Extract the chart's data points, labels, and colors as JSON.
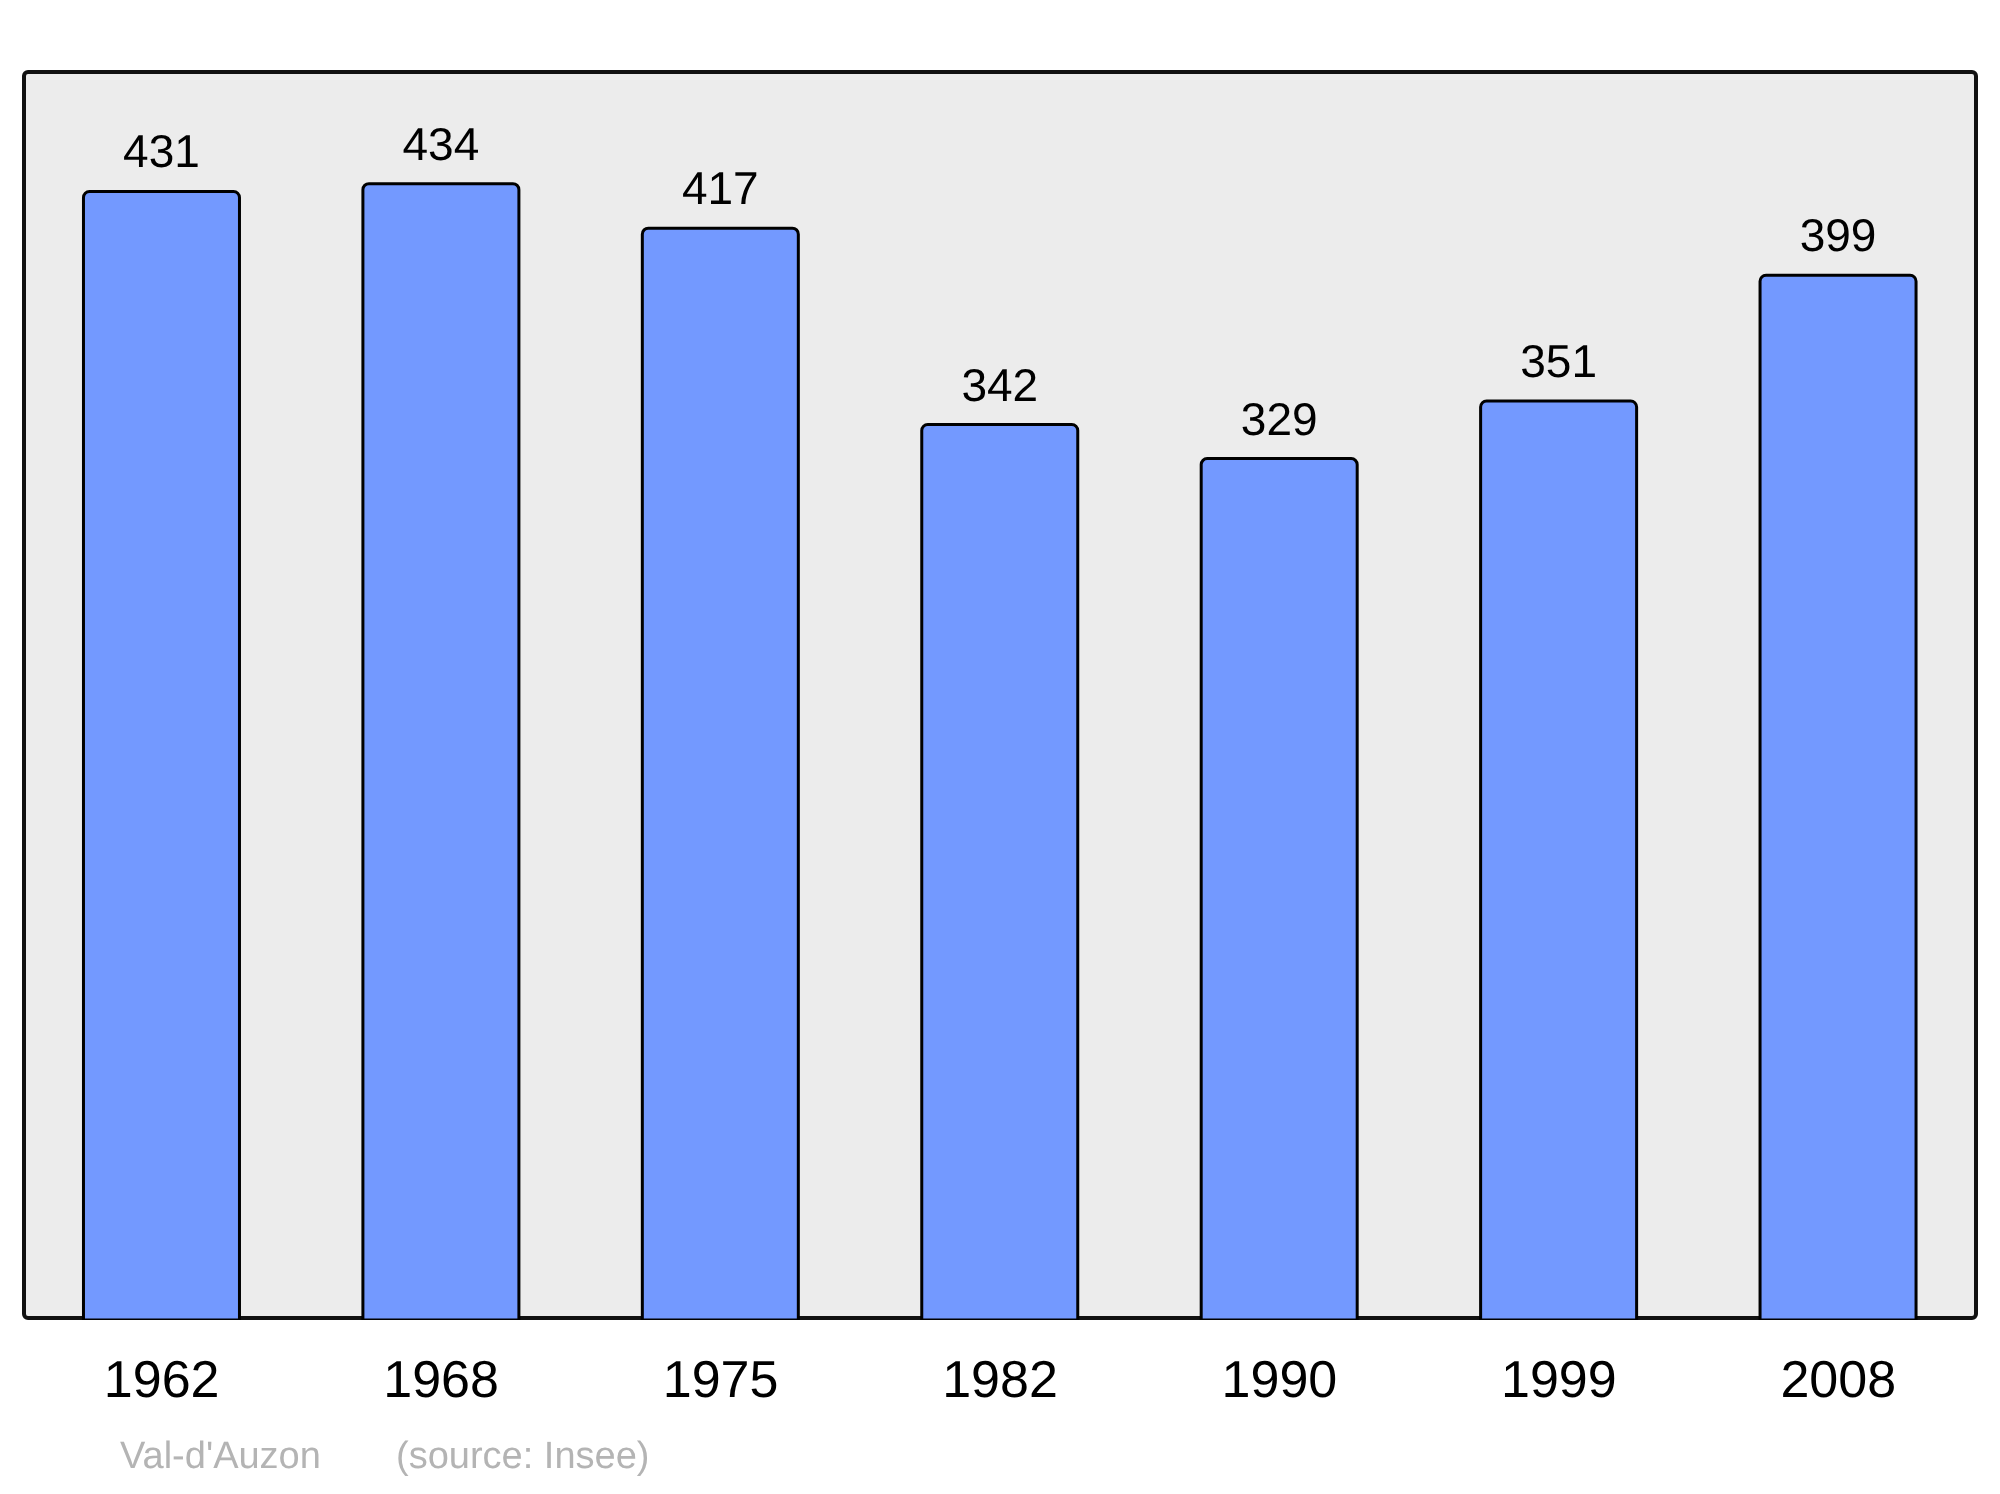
{
  "chart_data": {
    "type": "bar",
    "categories": [
      "1962",
      "1968",
      "1975",
      "1982",
      "1990",
      "1999",
      "2008"
    ],
    "values": [
      431,
      434,
      417,
      342,
      329,
      351,
      399
    ],
    "color": "#7399ff",
    "data_labels": true,
    "annotations": [
      "Val-d'Auzon",
      "(source: Insee)"
    ]
  }
}
